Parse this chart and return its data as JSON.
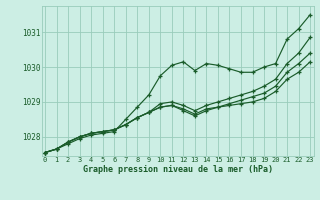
{
  "title": "Graphe pression niveau de la mer (hPa)",
  "bg_color": "#cceee4",
  "grid_color": "#99ccbb",
  "line_color": "#1a5c2a",
  "x_ticks": [
    0,
    1,
    2,
    3,
    4,
    5,
    6,
    7,
    8,
    9,
    10,
    11,
    12,
    13,
    14,
    15,
    16,
    17,
    18,
    19,
    20,
    21,
    22,
    23
  ],
  "y_ticks": [
    1028,
    1029,
    1030,
    1031
  ],
  "ylim": [
    1027.45,
    1031.75
  ],
  "xlim": [
    -0.3,
    23.3
  ],
  "line1": [
    1027.55,
    1027.65,
    1027.8,
    1027.95,
    1028.05,
    1028.1,
    1028.15,
    1028.5,
    1028.85,
    1029.2,
    1029.75,
    1030.05,
    1030.15,
    1029.9,
    1030.1,
    1030.05,
    1029.95,
    1029.85,
    1029.85,
    1030.0,
    1030.1,
    1030.8,
    1031.1,
    1031.5
  ],
  "line2": [
    1027.55,
    1027.65,
    1027.85,
    1028.0,
    1028.1,
    1028.15,
    1028.2,
    1028.35,
    1028.55,
    1028.7,
    1028.85,
    1028.9,
    1028.75,
    1028.6,
    1028.75,
    1028.85,
    1028.95,
    1029.05,
    1029.15,
    1029.25,
    1029.45,
    1029.85,
    1030.1,
    1030.4
  ],
  "line3": [
    1027.55,
    1027.65,
    1027.85,
    1028.0,
    1028.1,
    1028.15,
    1028.2,
    1028.35,
    1028.55,
    1028.7,
    1028.95,
    1029.0,
    1028.9,
    1028.75,
    1028.9,
    1029.0,
    1029.1,
    1029.2,
    1029.3,
    1029.45,
    1029.65,
    1030.1,
    1030.4,
    1030.85
  ],
  "line4": [
    1027.55,
    1027.65,
    1027.85,
    1028.0,
    1028.1,
    1028.15,
    1028.2,
    1028.35,
    1028.55,
    1028.7,
    1028.85,
    1028.9,
    1028.8,
    1028.65,
    1028.8,
    1028.85,
    1028.9,
    1028.95,
    1029.0,
    1029.1,
    1029.3,
    1029.65,
    1029.85,
    1030.15
  ]
}
